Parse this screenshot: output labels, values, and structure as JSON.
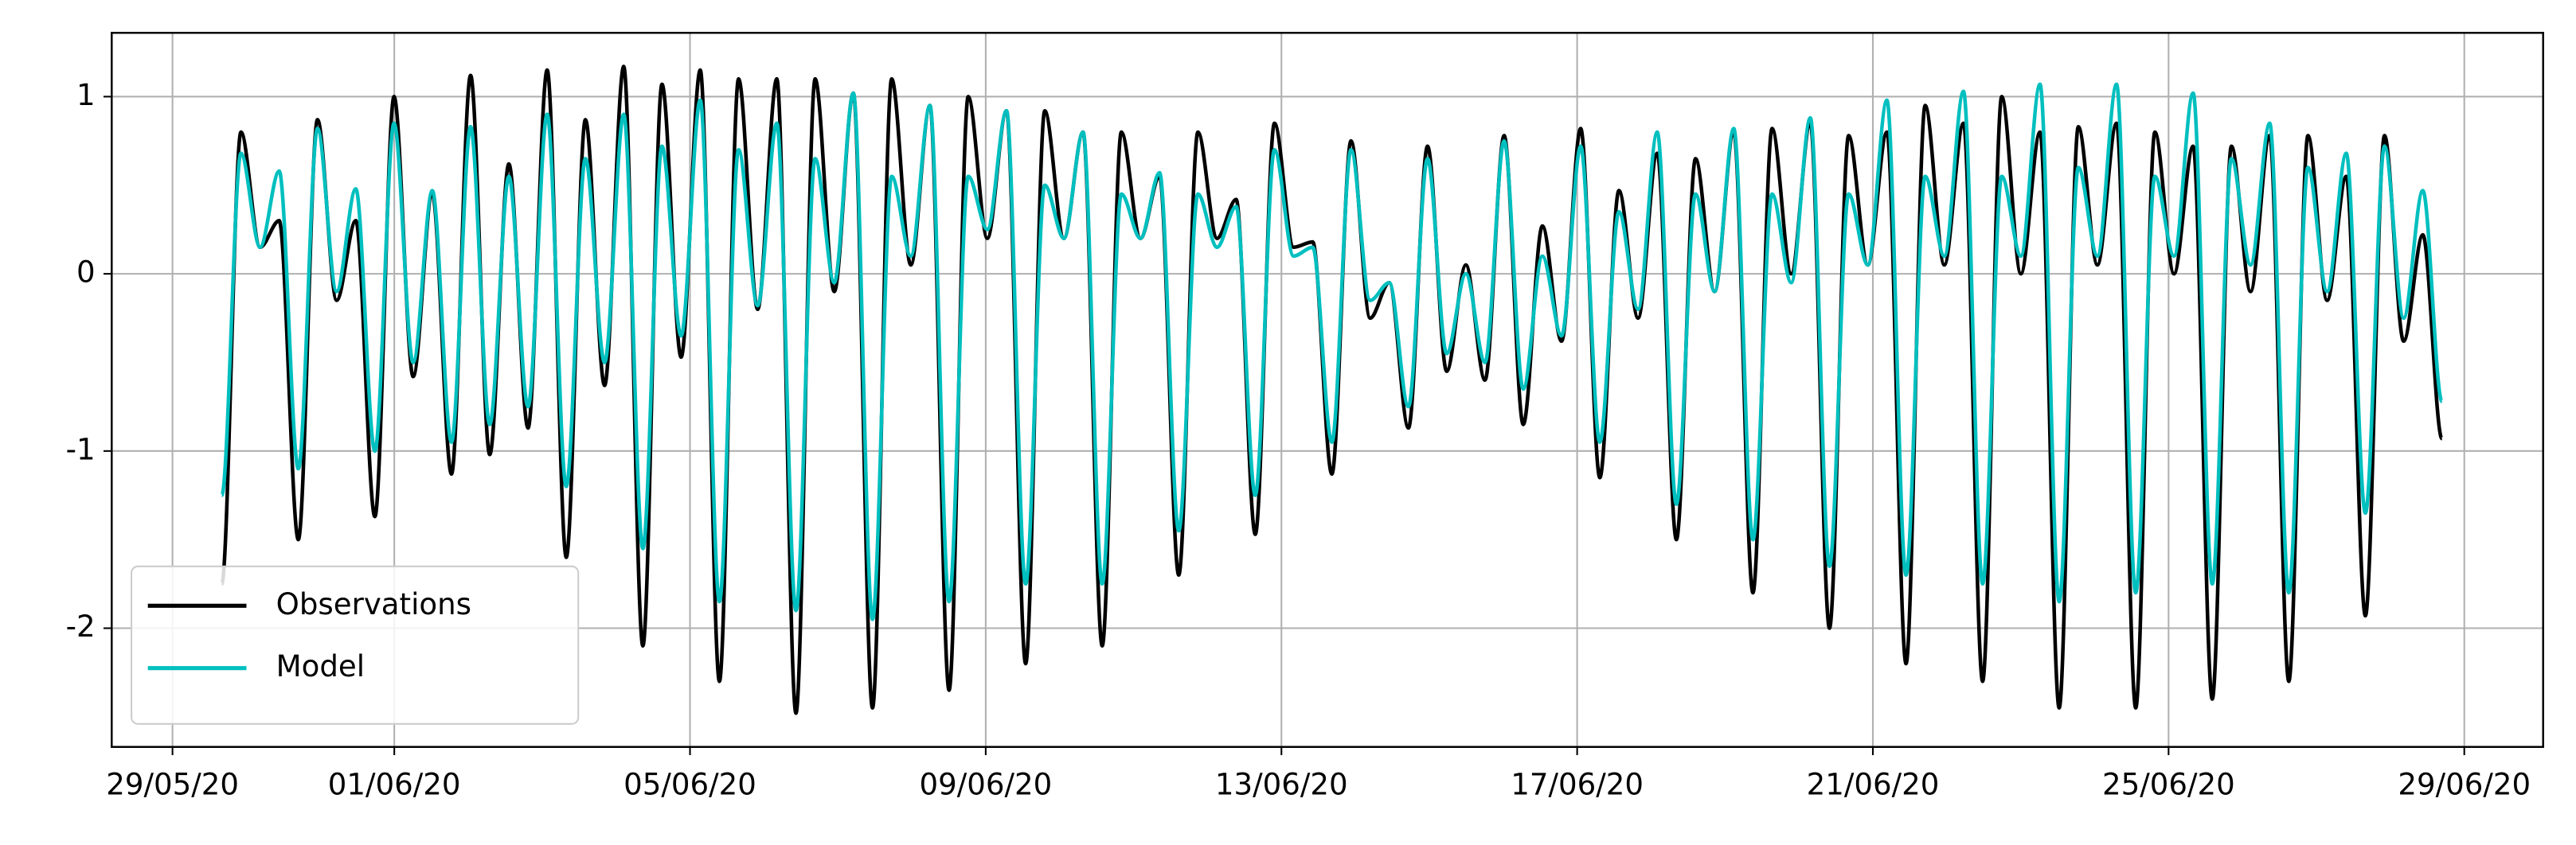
{
  "chart_data": {
    "type": "line",
    "x": [
      "2020-05-29T16:00",
      "2020-05-29T22:13",
      "2020-05-30T04:26",
      "2020-05-30T10:38",
      "2020-05-30T16:51",
      "2020-05-30T23:04",
      "2020-05-31T05:17",
      "2020-05-31T11:30",
      "2020-05-31T17:42",
      "2020-05-31T23:55",
      "2020-06-01T06:08",
      "2020-06-01T12:21",
      "2020-06-01T18:34",
      "2020-06-02T00:46",
      "2020-06-02T06:59",
      "2020-06-02T13:12",
      "2020-06-02T19:25",
      "2020-06-03T01:38",
      "2020-06-03T07:50",
      "2020-06-03T14:03",
      "2020-06-03T20:16",
      "2020-06-04T02:29",
      "2020-06-04T08:42",
      "2020-06-04T14:54",
      "2020-06-04T21:07",
      "2020-06-05T03:20",
      "2020-06-05T09:33",
      "2020-06-05T15:46",
      "2020-06-05T21:58",
      "2020-06-06T04:11",
      "2020-06-06T10:24",
      "2020-06-06T16:37",
      "2020-06-06T22:50",
      "2020-06-07T05:02",
      "2020-06-07T11:15",
      "2020-06-07T17:28",
      "2020-06-07T23:41",
      "2020-06-08T05:54",
      "2020-06-08T12:06",
      "2020-06-08T18:19",
      "2020-06-09T00:32",
      "2020-06-09T06:45",
      "2020-06-09T12:58",
      "2020-06-09T19:10",
      "2020-06-10T01:23",
      "2020-06-10T07:36",
      "2020-06-10T13:49",
      "2020-06-10T20:02",
      "2020-06-11T02:14",
      "2020-06-11T08:27",
      "2020-06-11T14:40",
      "2020-06-11T20:53",
      "2020-06-12T03:06",
      "2020-06-12T09:18",
      "2020-06-12T15:31",
      "2020-06-12T21:44",
      "2020-06-13T03:57",
      "2020-06-13T10:10",
      "2020-06-13T16:22",
      "2020-06-13T22:35",
      "2020-06-14T04:48",
      "2020-06-14T11:01",
      "2020-06-14T17:14",
      "2020-06-14T23:26",
      "2020-06-15T05:39",
      "2020-06-15T11:52",
      "2020-06-15T18:05",
      "2020-06-16T00:18",
      "2020-06-16T06:30",
      "2020-06-16T12:43",
      "2020-06-16T18:56",
      "2020-06-17T01:09",
      "2020-06-17T07:22",
      "2020-06-17T13:34",
      "2020-06-17T19:47",
      "2020-06-18T02:00",
      "2020-06-18T08:13",
      "2020-06-18T14:26",
      "2020-06-18T20:38",
      "2020-06-19T02:51",
      "2020-06-19T09:04",
      "2020-06-19T15:17",
      "2020-06-19T21:30",
      "2020-06-20T03:42",
      "2020-06-20T09:55",
      "2020-06-20T16:08",
      "2020-06-20T22:21",
      "2020-06-21T04:34",
      "2020-06-21T10:46",
      "2020-06-21T16:59",
      "2020-06-21T23:12",
      "2020-06-22T05:25",
      "2020-06-22T11:38",
      "2020-06-22T17:50",
      "2020-06-23T00:03",
      "2020-06-23T06:16",
      "2020-06-23T12:29",
      "2020-06-23T18:42",
      "2020-06-24T00:54",
      "2020-06-24T07:07",
      "2020-06-24T13:20",
      "2020-06-24T19:33",
      "2020-06-25T01:46",
      "2020-06-25T07:58",
      "2020-06-25T14:11",
      "2020-06-25T20:24",
      "2020-06-26T02:37",
      "2020-06-26T08:50",
      "2020-06-26T15:02",
      "2020-06-26T21:15",
      "2020-06-27T03:28",
      "2020-06-27T09:41",
      "2020-06-27T15:54",
      "2020-06-27T22:06",
      "2020-06-28T04:19",
      "2020-06-28T10:32",
      "2020-06-28T16:45"
    ],
    "series": [
      {
        "name": "Observations",
        "color": "#000000",
        "values": [
          -1.75,
          0.8,
          0.15,
          0.3,
          -1.5,
          0.87,
          -0.15,
          0.3,
          -1.37,
          1.0,
          -0.58,
          0.45,
          -1.13,
          1.12,
          -1.02,
          0.62,
          -0.87,
          1.15,
          -1.6,
          0.87,
          -0.63,
          1.17,
          -2.1,
          1.07,
          -0.47,
          1.15,
          -2.3,
          1.1,
          -0.2,
          1.1,
          -2.48,
          1.1,
          -0.1,
          1.02,
          -2.45,
          1.1,
          0.05,
          0.95,
          -2.35,
          1.0,
          0.2,
          0.92,
          -2.2,
          0.92,
          0.2,
          0.8,
          -2.1,
          0.8,
          0.2,
          0.55,
          -1.7,
          0.8,
          0.2,
          0.42,
          -1.47,
          0.85,
          0.15,
          0.18,
          -1.13,
          0.75,
          -0.25,
          -0.05,
          -0.87,
          0.72,
          -0.55,
          0.05,
          -0.6,
          0.78,
          -0.85,
          0.27,
          -0.38,
          0.82,
          -1.15,
          0.47,
          -0.25,
          0.68,
          -1.5,
          0.65,
          -0.1,
          0.8,
          -1.8,
          0.82,
          0.0,
          0.85,
          -2.0,
          0.78,
          0.05,
          0.8,
          -2.2,
          0.95,
          0.05,
          0.85,
          -2.3,
          1.0,
          0.0,
          0.8,
          -2.45,
          0.83,
          0.05,
          0.85,
          -2.45,
          0.8,
          0.0,
          0.72,
          -2.4,
          0.72,
          -0.1,
          0.78,
          -2.3,
          0.78,
          -0.15,
          0.55,
          -1.93,
          0.78,
          -0.38,
          0.22,
          -0.93
        ]
      },
      {
        "name": "Model",
        "color": "#00bfbf",
        "values": [
          -1.25,
          0.68,
          0.15,
          0.58,
          -1.1,
          0.82,
          -0.1,
          0.48,
          -1.0,
          0.85,
          -0.5,
          0.47,
          -0.95,
          0.83,
          -0.85,
          0.55,
          -0.75,
          0.9,
          -1.2,
          0.65,
          -0.5,
          0.9,
          -1.55,
          0.72,
          -0.35,
          0.98,
          -1.85,
          0.7,
          -0.18,
          0.85,
          -1.9,
          0.65,
          -0.05,
          1.02,
          -1.95,
          0.55,
          0.1,
          0.95,
          -1.85,
          0.55,
          0.25,
          0.92,
          -1.75,
          0.5,
          0.2,
          0.8,
          -1.75,
          0.45,
          0.2,
          0.57,
          -1.45,
          0.45,
          0.15,
          0.38,
          -1.25,
          0.7,
          0.1,
          0.15,
          -0.95,
          0.7,
          -0.15,
          -0.05,
          -0.75,
          0.65,
          -0.45,
          0.0,
          -0.5,
          0.75,
          -0.65,
          0.1,
          -0.35,
          0.72,
          -0.95,
          0.35,
          -0.2,
          0.8,
          -1.3,
          0.45,
          -0.1,
          0.82,
          -1.5,
          0.45,
          -0.05,
          0.88,
          -1.65,
          0.45,
          0.05,
          0.98,
          -1.7,
          0.55,
          0.1,
          1.03,
          -1.75,
          0.55,
          0.1,
          1.07,
          -1.85,
          0.6,
          0.1,
          1.07,
          -1.8,
          0.55,
          0.1,
          1.02,
          -1.75,
          0.65,
          0.05,
          0.85,
          -1.8,
          0.6,
          -0.1,
          0.68,
          -1.35,
          0.72,
          -0.25,
          0.47,
          -0.72
        ]
      }
    ],
    "xlim": [
      "2020-05-28T04:16",
      "2020-06-30T01:36"
    ],
    "xticks": [
      {
        "value": "2020-05-29T00:00",
        "label": "29/05/20"
      },
      {
        "value": "2020-06-01T00:00",
        "label": "01/06/20"
      },
      {
        "value": "2020-06-05T00:00",
        "label": "05/06/20"
      },
      {
        "value": "2020-06-09T00:00",
        "label": "09/06/20"
      },
      {
        "value": "2020-06-13T00:00",
        "label": "13/06/20"
      },
      {
        "value": "2020-06-17T00:00",
        "label": "17/06/20"
      },
      {
        "value": "2020-06-21T00:00",
        "label": "21/06/20"
      },
      {
        "value": "2020-06-25T00:00",
        "label": "25/06/20"
      },
      {
        "value": "2020-06-29T00:00",
        "label": "29/06/20"
      }
    ],
    "ylim": [
      -2.67,
      1.36
    ],
    "yticks": [
      -2,
      -1,
      0,
      1
    ],
    "grid": true,
    "legend": "lower left"
  }
}
